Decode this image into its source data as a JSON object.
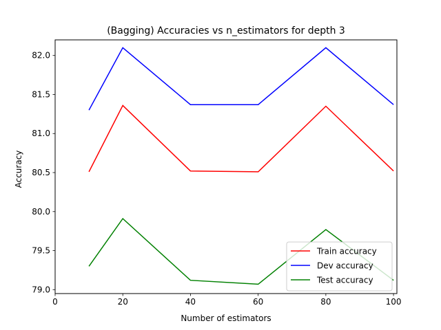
{
  "chart_data": {
    "type": "line",
    "title": "(Bagging) Accuracies vs n_estimators for depth 3",
    "xlabel": "Number of estimators",
    "ylabel": "Accuracy",
    "xlim": [
      0,
      101
    ],
    "ylim": [
      78.95,
      82.2
    ],
    "x_ticks": [
      0,
      20,
      40,
      60,
      80,
      100
    ],
    "y_ticks": [
      79.0,
      79.5,
      80.0,
      80.5,
      81.0,
      81.5,
      82.0
    ],
    "y_tick_labels": [
      "79.0",
      "79.5",
      "80.0",
      "80.5",
      "81.0",
      "81.5",
      "82.0"
    ],
    "x": [
      10,
      20,
      40,
      60,
      80,
      100
    ],
    "series": [
      {
        "name": "Train accuracy",
        "color": "#ff0000",
        "values": [
          80.51,
          81.36,
          80.52,
          80.51,
          81.35,
          80.52
        ]
      },
      {
        "name": "Dev accuracy",
        "color": "#0000ff",
        "values": [
          81.3,
          82.1,
          81.37,
          81.37,
          82.1,
          81.37
        ]
      },
      {
        "name": "Test accuracy",
        "color": "#008000",
        "values": [
          79.3,
          79.91,
          79.12,
          79.07,
          79.77,
          79.12
        ]
      }
    ],
    "grid": false,
    "legend_position": "lower-right"
  }
}
